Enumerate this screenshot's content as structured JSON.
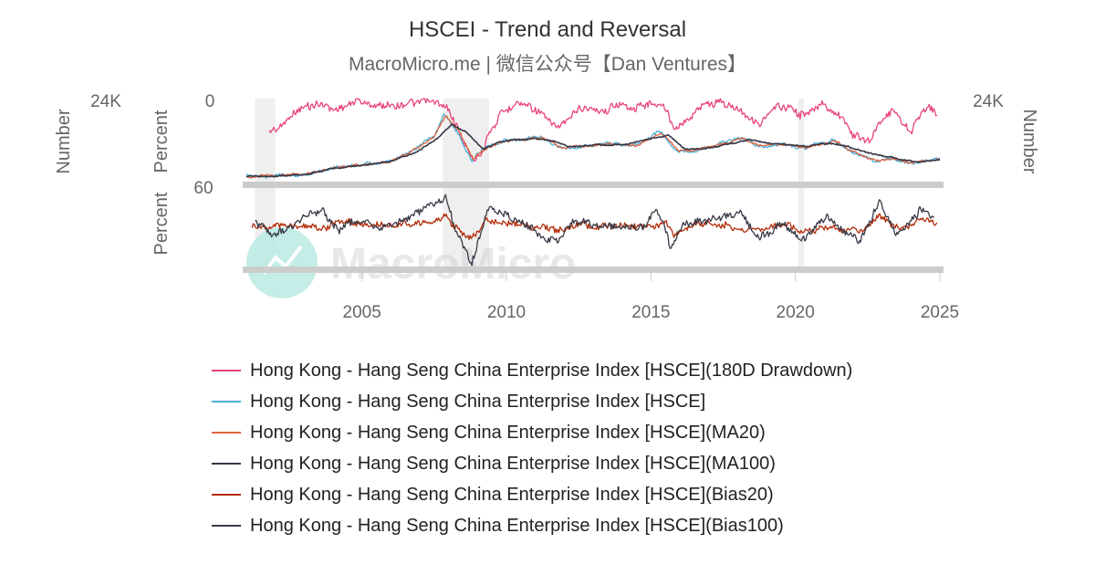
{
  "title": "HSCEI - Trend and Reversal",
  "subtitle": "MacroMicro.me | 微信公众号【Dan Ventures】",
  "watermark": "MacroMicro",
  "axes": {
    "left_outer_title": "Number",
    "left_outer_tick": "24K",
    "right_title": "Number",
    "right_tick": "24K",
    "pane1_title": "Percent",
    "pane1_ticks": [
      "0",
      "60"
    ],
    "pane2_title": "Percent"
  },
  "chart_data": {
    "type": "line",
    "x_range": [
      2001,
      2025
    ],
    "x_ticks": [
      "2005",
      "2010",
      "2015",
      "2020",
      "2025"
    ],
    "shaded_periods": [
      [
        2001.3,
        2002.0
      ],
      [
        2007.8,
        2009.4
      ],
      [
        2020.1,
        2020.3
      ]
    ],
    "panes": [
      {
        "name": "upper",
        "series": [
          {
            "name": "Hong Kong - Hang Seng China Enterprise Index [HSCE](180D Drawdown)",
            "color": "#e8457e",
            "axis": "left-percent",
            "ylim": [
              0,
              60
            ],
            "x": [
              2001.8,
              2002.5,
              2003.3,
              2004.0,
              2004.8,
              2005.5,
              2006.5,
              2007.3,
              2007.9,
              2008.3,
              2008.7,
              2008.9,
              2009.3,
              2009.8,
              2010.4,
              2011.0,
              2011.8,
              2012.5,
              2013.2,
              2013.9,
              2014.5,
              2015.0,
              2015.4,
              2015.9,
              2016.3,
              2016.8,
              2017.5,
              2018.1,
              2018.8,
              2019.4,
              2020.0,
              2020.3,
              2020.9,
              2021.5,
              2022.0,
              2022.6,
              2022.9,
              2023.4,
              2024.0,
              2024.6,
              2024.9
            ],
            "values": [
              25,
              14,
              3,
              8,
              2,
              6,
              3,
              1,
              5,
              20,
              40,
              45,
              30,
              10,
              3,
              7,
              22,
              6,
              10,
              5,
              8,
              2,
              4,
              22,
              14,
              4,
              2,
              9,
              18,
              6,
              8,
              14,
              4,
              10,
              26,
              30,
              18,
              9,
              24,
              3,
              12
            ]
          },
          {
            "name": "Hong Kong - Hang Seng China Enterprise Index [HSCE]",
            "color": "#4aaed8",
            "axis": "left-number",
            "ylim": [
              0,
              24000
            ],
            "x": [
              2001.0,
              2002.0,
              2003.0,
              2004.0,
              2005.0,
              2006.0,
              2006.8,
              2007.5,
              2007.85,
              2008.3,
              2008.8,
              2009.3,
              2009.9,
              2010.5,
              2011.3,
              2011.8,
              2012.5,
              2013.5,
              2014.5,
              2015.3,
              2015.9,
              2016.5,
              2017.5,
              2018.1,
              2018.8,
              2019.5,
              2020.2,
              2020.9,
              2021.3,
              2022.0,
              2022.8,
              2023.3,
              2024.0,
              2024.5,
              2025.0
            ],
            "values": [
              1700,
              1900,
              2400,
              4400,
              5100,
              6200,
              9500,
              13500,
              20000,
              14500,
              6200,
              10500,
              12000,
              12200,
              13000,
              9800,
              10300,
              11200,
              10500,
              14500,
              9000,
              9200,
              11200,
              12800,
              10300,
              11000,
              9800,
              11200,
              12000,
              8500,
              5800,
              7000,
              5400,
              6400,
              6800
            ]
          },
          {
            "name": "Hong Kong - Hang Seng China Enterprise Index [HSCE](MA20)",
            "color": "#e0623c",
            "axis": "left-number",
            "ylim": [
              0,
              24000
            ],
            "x": [
              2001.0,
              2002.0,
              2003.0,
              2004.0,
              2005.0,
              2006.0,
              2006.8,
              2007.5,
              2007.9,
              2008.35,
              2008.85,
              2009.35,
              2009.95,
              2010.5,
              2011.3,
              2011.85,
              2012.5,
              2013.5,
              2014.5,
              2015.35,
              2015.95,
              2016.5,
              2017.5,
              2018.15,
              2018.85,
              2019.5,
              2020.25,
              2020.95,
              2021.35,
              2022.05,
              2022.85,
              2023.35,
              2024.05,
              2024.5,
              2025.0
            ],
            "values": [
              1700,
              1900,
              2400,
              4300,
              5100,
              6100,
              9300,
              13200,
              19000,
              14800,
              6600,
              10200,
              11900,
              12200,
              12900,
              10000,
              10300,
              11100,
              10500,
              14200,
              9300,
              9200,
              11100,
              12600,
              10400,
              10900,
              9900,
              11100,
              11900,
              8700,
              6000,
              7000,
              5500,
              6300,
              6700
            ]
          },
          {
            "name": "Hong Kong - Hang Seng China Enterprise Index [HSCE](MA100)",
            "color": "#353746",
            "axis": "left-number",
            "ylim": [
              0,
              24000
            ],
            "x": [
              2001.0,
              2002.0,
              2003.0,
              2004.0,
              2005.0,
              2006.0,
              2006.9,
              2007.6,
              2008.1,
              2008.6,
              2009.2,
              2009.7,
              2010.3,
              2011.0,
              2011.6,
              2012.2,
              2013.0,
              2014.0,
              2015.0,
              2015.6,
              2016.2,
              2016.9,
              2017.7,
              2018.4,
              2019.0,
              2019.7,
              2020.4,
              2021.2,
              2021.8,
              2022.5,
              2023.1,
              2023.7,
              2024.2,
              2024.7,
              2025.0
            ],
            "values": [
              1700,
              1850,
              2250,
              4000,
              5000,
              6000,
              8800,
              12500,
              16500,
              14500,
              9500,
              11500,
              12200,
              12500,
              11800,
              10200,
              10800,
              10700,
              12500,
              13500,
              9500,
              9800,
              11000,
              12200,
              11200,
              10800,
              10400,
              11300,
              10500,
              8400,
              7500,
              6600,
              5800,
              6200,
              6600
            ]
          }
        ]
      },
      {
        "name": "lower",
        "series": [
          {
            "name": "Hong Kong - Hang Seng China Enterprise Index [HSCE](Bias20)",
            "color": "#b32d0a",
            "axis": "percent",
            "x": [
              2001.2,
              2002.3,
              2003.5,
              2004.4,
              2005.5,
              2006.6,
              2007.5,
              2007.9,
              2008.4,
              2008.8,
              2009.3,
              2010.5,
              2011.7,
              2012.6,
              2013.8,
              2014.9,
              2015.5,
              2015.8,
              2016.6,
              2017.8,
              2018.7,
              2019.6,
              2020.2,
              2021.3,
              2022.3,
              2022.9,
              2023.6,
              2024.4,
              2024.9
            ],
            "values": [
              0,
              1,
              -1,
              2,
              0,
              1,
              3,
              5,
              -4,
              -6,
              4,
              0,
              -2,
              1,
              0,
              -1,
              3,
              -4,
              1,
              0,
              -2,
              1,
              -3,
              0,
              -3,
              4,
              -1,
              3,
              1
            ]
          },
          {
            "name": "Hong Kong - Hang Seng China Enterprise Index [HSCE](Bias100)",
            "color": "#3a3a48",
            "axis": "percent",
            "x": [
              2001.3,
              2001.9,
              2002.7,
              2003.6,
              2004.2,
              2004.8,
              2005.6,
              2006.5,
              2007.2,
              2007.9,
              2008.3,
              2008.8,
              2009.4,
              2009.8,
              2010.6,
              2011.7,
              2012.3,
              2013.4,
              2014.6,
              2015.2,
              2015.7,
              2016.1,
              2017.2,
              2018.1,
              2018.8,
              2019.6,
              2020.2,
              2021.1,
              2022.2,
              2022.9,
              2023.5,
              2024.3,
              2024.8
            ],
            "values": [
              3,
              -6,
              2,
              8,
              -2,
              4,
              0,
              3,
              10,
              14,
              -4,
              -18,
              10,
              6,
              1,
              -8,
              2,
              0,
              -2,
              9,
              -10,
              0,
              4,
              7,
              -6,
              2,
              -8,
              5,
              -7,
              12,
              -3,
              8,
              4
            ]
          }
        ]
      }
    ]
  },
  "legend": [
    {
      "label": "Hong Kong - Hang Seng China Enterprise Index [HSCE](180D Drawdown)",
      "color": "#e8457e"
    },
    {
      "label": "Hong Kong - Hang Seng China Enterprise Index [HSCE]",
      "color": "#4aaed8"
    },
    {
      "label": "Hong Kong - Hang Seng China Enterprise Index [HSCE](MA20)",
      "color": "#e0623c"
    },
    {
      "label": "Hong Kong - Hang Seng China Enterprise Index [HSCE](MA100)",
      "color": "#353746"
    },
    {
      "label": "Hong Kong - Hang Seng China Enterprise Index [HSCE](Bias20)",
      "color": "#b32d0a"
    },
    {
      "label": "Hong Kong - Hang Seng China Enterprise Index [HSCE](Bias100)",
      "color": "#3a3a48"
    }
  ]
}
